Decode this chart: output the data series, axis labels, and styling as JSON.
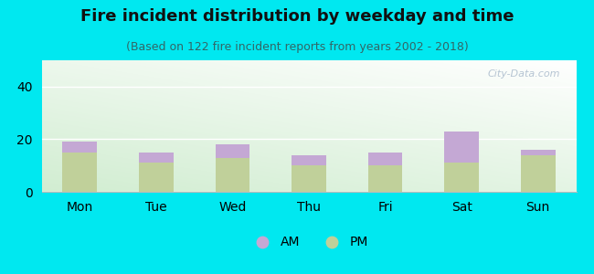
{
  "title": "Fire incident distribution by weekday and time",
  "subtitle": "(Based on 122 fire incident reports from years 2002 - 2018)",
  "days": [
    "Mon",
    "Tue",
    "Wed",
    "Thu",
    "Fri",
    "Sat",
    "Sun"
  ],
  "pm_values": [
    15,
    11,
    13,
    10,
    10,
    11,
    14
  ],
  "am_values": [
    4,
    4,
    5,
    4,
    5,
    12,
    2
  ],
  "am_color": "#c4a8d4",
  "pm_color": "#c0d09a",
  "ylim": [
    0,
    50
  ],
  "yticks": [
    0,
    20,
    40
  ],
  "bg_outer": "#00e8f0",
  "watermark": "City-Data.com",
  "title_fontsize": 13,
  "subtitle_fontsize": 9,
  "axis_label_fontsize": 10,
  "legend_fontsize": 10,
  "bar_width": 0.45
}
